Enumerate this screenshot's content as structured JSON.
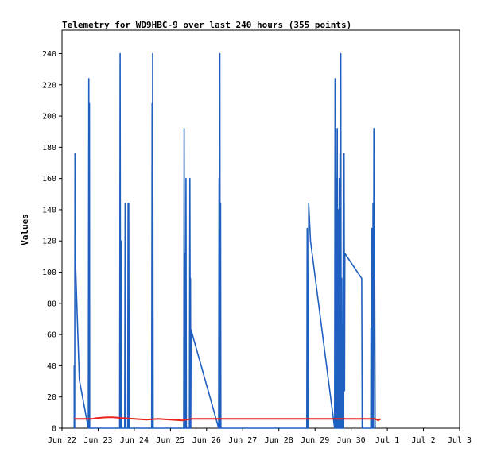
{
  "chart_data": {
    "type": "line",
    "title": "Telemetry for WD9HBC-9 over last 240 hours (355 points)",
    "xlabel": "",
    "ylabel": "Values",
    "x_ticks": [
      "Jun 22",
      "Jun 23",
      "Jun 24",
      "Jun 25",
      "Jun 26",
      "Jun 27",
      "Jun 28",
      "Jun 29",
      "Jun 30",
      "Jul 1",
      "Jul 2",
      "Jul 3"
    ],
    "xlim_hours": [
      0,
      264
    ],
    "ylim": [
      0,
      255
    ],
    "y_ticks": [
      0,
      20,
      40,
      60,
      80,
      100,
      120,
      140,
      160,
      180,
      200,
      220,
      240
    ],
    "grid": false,
    "series": [
      {
        "name": "",
        "color": "#1f5fbf",
        "points": [
          [
            8.1,
            0
          ],
          [
            8.1,
            40
          ],
          [
            8.4,
            0
          ],
          [
            8.6,
            176
          ],
          [
            8.8,
            110
          ],
          [
            11.5,
            31
          ],
          [
            17.5,
            0
          ],
          [
            17.8,
            224
          ],
          [
            18.1,
            0
          ],
          [
            18.2,
            208
          ],
          [
            18.4,
            0
          ],
          [
            38.3,
            0
          ],
          [
            38.6,
            240
          ],
          [
            38.9,
            0
          ],
          [
            39.2,
            120
          ],
          [
            39.5,
            0
          ],
          [
            41.6,
            0
          ],
          [
            41.9,
            144
          ],
          [
            42.2,
            0
          ],
          [
            43.6,
            0
          ],
          [
            43.9,
            144
          ],
          [
            44.1,
            0
          ],
          [
            44.3,
            144
          ],
          [
            44.6,
            0
          ],
          [
            59.5,
            0
          ],
          [
            59.8,
            208
          ],
          [
            60.0,
            0
          ],
          [
            60.2,
            240
          ],
          [
            60.5,
            0
          ],
          [
            80.8,
            0
          ],
          [
            81.1,
            192
          ],
          [
            81.4,
            0
          ],
          [
            81.8,
            112
          ],
          [
            82.0,
            0
          ],
          [
            82.3,
            160
          ],
          [
            82.6,
            0
          ],
          [
            84.6,
            0
          ],
          [
            84.9,
            160
          ],
          [
            85.2,
            0
          ],
          [
            85.3,
            96
          ],
          [
            85.5,
            0
          ],
          [
            85.7,
            63
          ],
          [
            104.0,
            0
          ],
          [
            104.3,
            160
          ],
          [
            104.5,
            0
          ],
          [
            104.8,
            240
          ],
          [
            105.0,
            0
          ],
          [
            105.3,
            144
          ],
          [
            105.5,
            0
          ],
          [
            162.5,
            0
          ],
          [
            162.8,
            128
          ],
          [
            163.0,
            0
          ],
          [
            163.3,
            80
          ],
          [
            163.5,
            0
          ],
          [
            163.8,
            144
          ],
          [
            165.0,
            120
          ],
          [
            181.0,
            0
          ],
          [
            181.3,
            224
          ],
          [
            181.6,
            0
          ],
          [
            181.8,
            192
          ],
          [
            182.0,
            0
          ],
          [
            182.3,
            160
          ],
          [
            182.6,
            0
          ],
          [
            182.8,
            192
          ],
          [
            183.0,
            0
          ],
          [
            183.3,
            128
          ],
          [
            183.6,
            140
          ],
          [
            183.8,
            0
          ],
          [
            184.1,
            160
          ],
          [
            184.3,
            0
          ],
          [
            184.6,
            176
          ],
          [
            184.9,
            0
          ],
          [
            185.1,
            240
          ],
          [
            185.4,
            0
          ],
          [
            185.7,
            96
          ],
          [
            185.9,
            0
          ],
          [
            186.2,
            64
          ],
          [
            186.5,
            0
          ],
          [
            186.8,
            152
          ],
          [
            187.0,
            0
          ],
          [
            187.3,
            176
          ],
          [
            187.6,
            24
          ],
          [
            187.8,
            112
          ],
          [
            199.0,
            96
          ],
          [
            199.3,
            0
          ],
          [
            205.0,
            0
          ],
          [
            205.2,
            64
          ],
          [
            205.5,
            0
          ],
          [
            205.8,
            128
          ],
          [
            206.0,
            48
          ],
          [
            206.2,
            0
          ],
          [
            206.5,
            144
          ],
          [
            206.8,
            0
          ],
          [
            207.1,
            192
          ],
          [
            207.4,
            50
          ],
          [
            207.6,
            96
          ],
          [
            207.9,
            0
          ]
        ]
      },
      {
        "name": "",
        "color": "#e8221c",
        "points": [
          [
            8.0,
            6
          ],
          [
            17.0,
            6
          ],
          [
            20.0,
            6
          ],
          [
            23.0,
            6.5
          ],
          [
            30.0,
            7
          ],
          [
            34.0,
            7
          ],
          [
            40.0,
            6.5
          ],
          [
            48.0,
            6
          ],
          [
            56.0,
            5.5
          ],
          [
            64.0,
            6
          ],
          [
            72.0,
            5.5
          ],
          [
            80.0,
            5
          ],
          [
            86.0,
            6
          ],
          [
            120.0,
            6
          ],
          [
            140.0,
            6
          ],
          [
            160.0,
            6
          ],
          [
            180.0,
            6
          ],
          [
            200.0,
            6
          ],
          [
            208.0,
            6
          ],
          [
            210.0,
            5
          ],
          [
            211.5,
            6
          ]
        ]
      }
    ]
  }
}
